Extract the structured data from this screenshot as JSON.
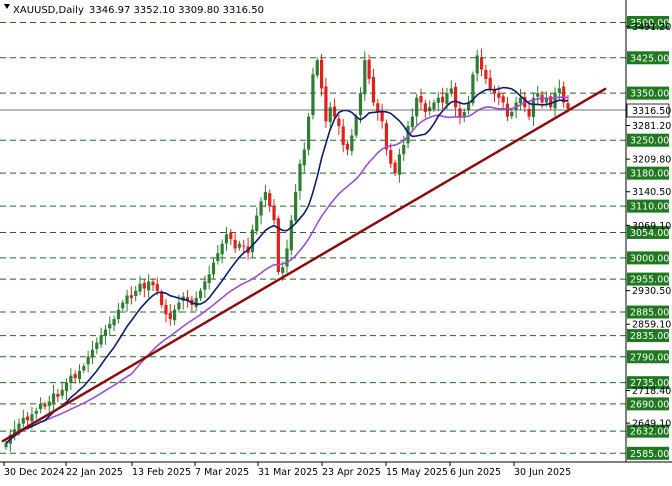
{
  "window": {
    "symbol": "XAUUSD,Daily",
    "ohlc": "3346.97 3352.10 3309.80 3316.50"
  },
  "colors": {
    "up_candle": "#2e7d32",
    "down_candle": "#e0201b",
    "ma_fast": "#0d1b6e",
    "ma_slow": "#9a4fd6",
    "trendline": "#8b0d0d",
    "level_box": "#1f7a1f",
    "level_line": "#1f6a1f"
  },
  "current_price": "3316.50",
  "chart_data": {
    "type": "candlestick",
    "x_labels": [
      "30 Dec 2024",
      "22 Jan 2025",
      "13 Feb 2025",
      "7 Mar 2025",
      "31 Mar 2025",
      "23 Apr 2025",
      "15 May 2025",
      "6 Jun 2025",
      "30 Jun 2025"
    ],
    "y_ticks": [
      "3491.20",
      "3281.20",
      "3209.80",
      "3140.50",
      "3069.10",
      "2930.50",
      "2859.10",
      "2718.40",
      "2649.10"
    ],
    "levels": [
      "3500.00",
      "3425.00",
      "3350.00",
      "3250.00",
      "3180.00",
      "3110.00",
      "3054.00",
      "3000.00",
      "2955.00",
      "2885.00",
      "2835.00",
      "2790.00",
      "2735.00",
      "2690.00",
      "2632.00",
      "2585.00"
    ],
    "level_values": [
      3500,
      3425,
      3350,
      3250,
      3180,
      3110,
      3054,
      3000,
      2955,
      2885,
      2835,
      2790,
      2735,
      2690,
      2632,
      2585
    ],
    "tick_values": [
      3491.2,
      3281.2,
      3209.8,
      3140.5,
      3069.1,
      2930.5,
      2859.1,
      2718.4,
      2649.1
    ],
    "y_range": [
      2575,
      3535
    ],
    "trendline": {
      "from": [
        "30 Dec 2024",
        2610
      ],
      "to": [
        "after 30 Jun 2025",
        3360
      ]
    },
    "candles_close": [
      2606,
      2624,
      2636,
      2648,
      2660,
      2655,
      2668,
      2675,
      2690,
      2684,
      2695,
      2712,
      2705,
      2720,
      2735,
      2750,
      2745,
      2760,
      2770,
      2790,
      2805,
      2820,
      2835,
      2848,
      2860,
      2870,
      2890,
      2905,
      2920,
      2915,
      2930,
      2945,
      2935,
      2950,
      2942,
      2930,
      2900,
      2880,
      2870,
      2890,
      2905,
      2918,
      2910,
      2900,
      2915,
      2930,
      2950,
      2965,
      2990,
      3010,
      3030,
      3050,
      3040,
      3020,
      3030,
      3025,
      3010,
      3060,
      3090,
      3120,
      3140,
      3110,
      3080,
      2970,
      2980,
      3020,
      3080,
      3140,
      3200,
      3230,
      3300,
      3390,
      3420,
      3360,
      3290,
      3320,
      3300,
      3280,
      3240,
      3230,
      3260,
      3300,
      3350,
      3420,
      3380,
      3330,
      3310,
      3290,
      3230,
      3200,
      3180,
      3220,
      3240,
      3280,
      3300,
      3340,
      3330,
      3310,
      3320,
      3330,
      3340,
      3330,
      3350,
      3360,
      3320,
      3300,
      3310,
      3330,
      3390,
      3430,
      3400,
      3380,
      3360,
      3350,
      3340,
      3330,
      3300,
      3310,
      3330,
      3340,
      3320,
      3300,
      3340,
      3350,
      3330,
      3340,
      3320,
      3350,
      3360,
      3330,
      3316.5
    ]
  }
}
